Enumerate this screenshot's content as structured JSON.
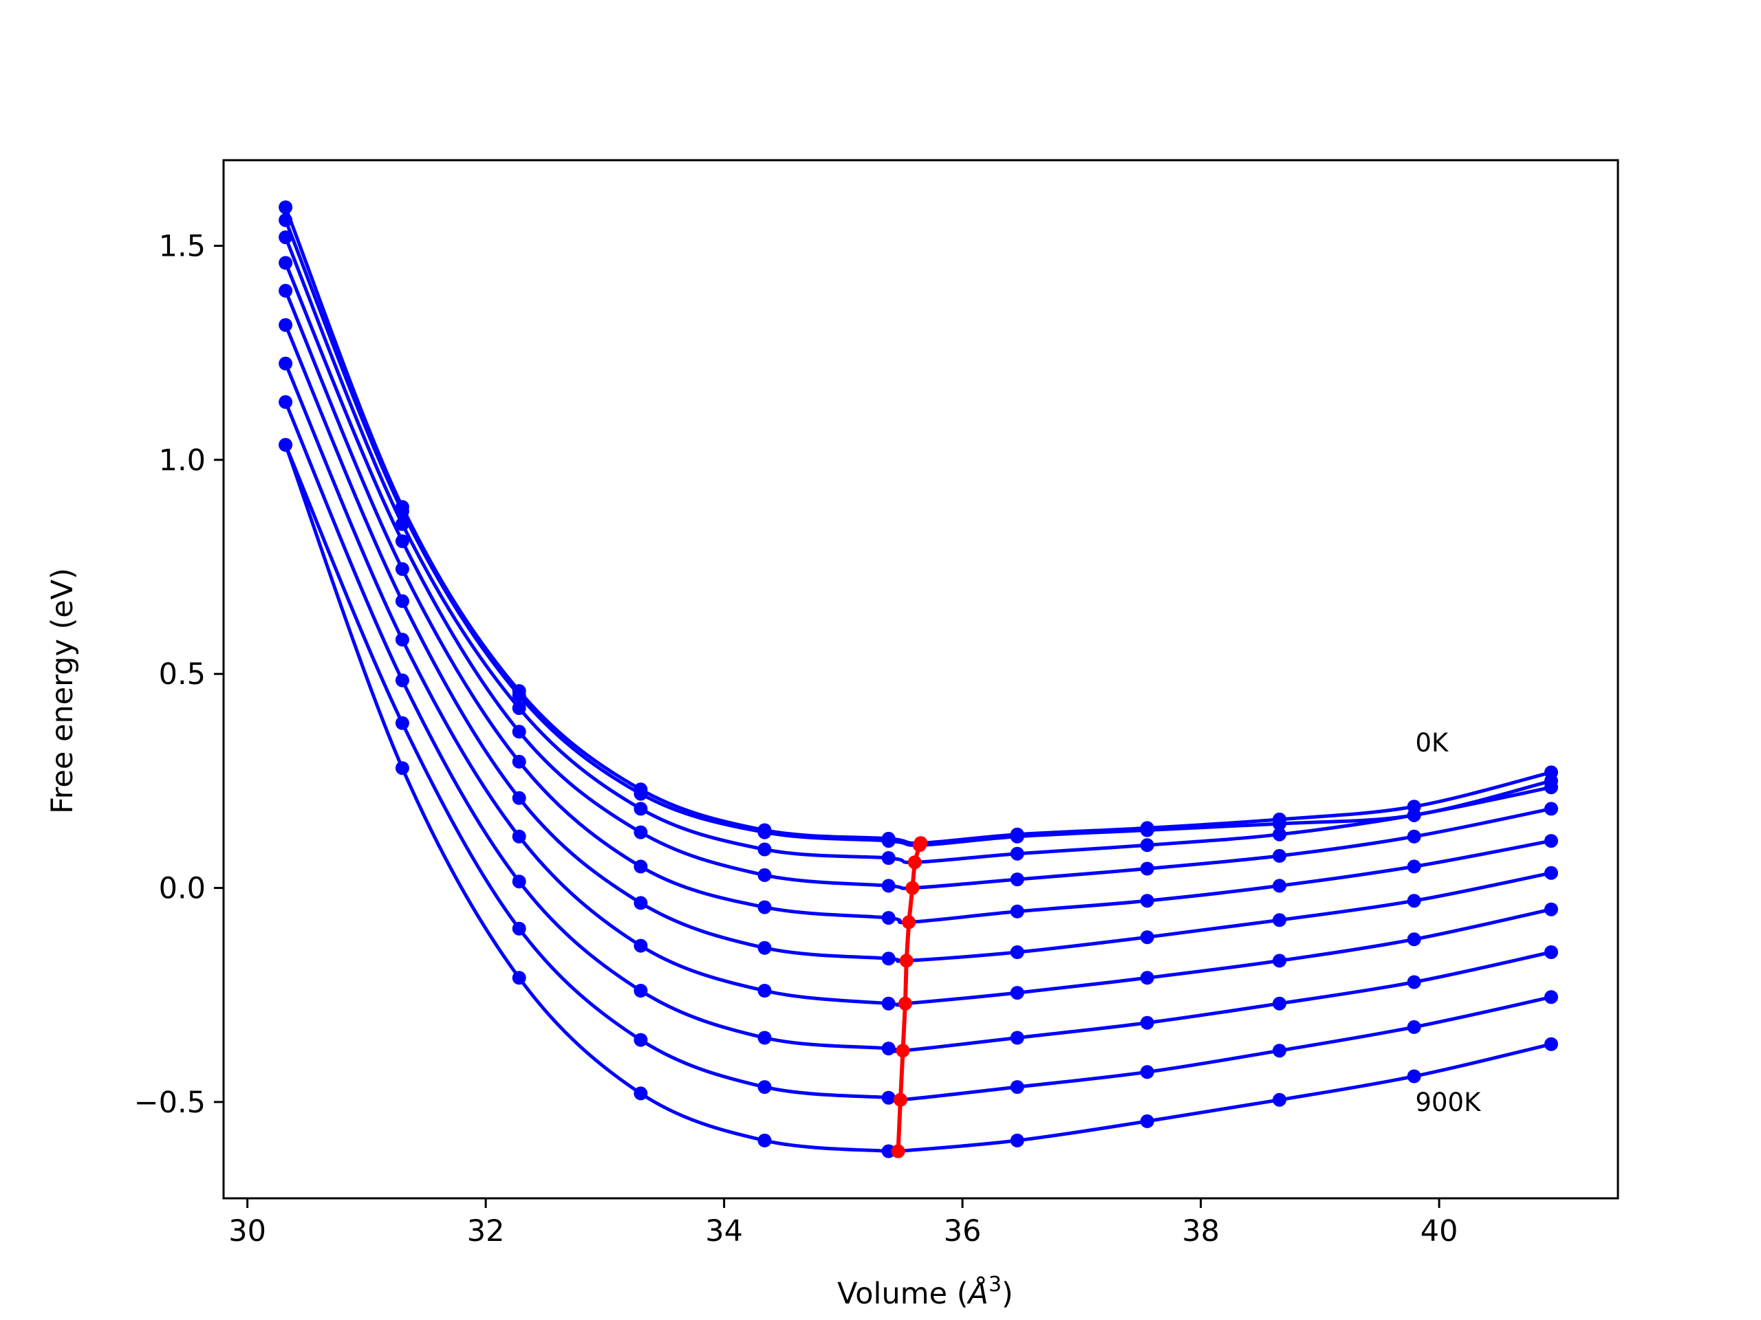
{
  "chart_data": {
    "type": "line",
    "xlabel": "Volume (",
    "xlabel_symbol": "Å",
    "xlabel_exp": "3",
    "xlabel_end": ")",
    "ylabel": "Free energy (eV)",
    "xlim": [
      29.8,
      41.5
    ],
    "ylim": [
      -0.725,
      1.7
    ],
    "xticks": [
      30,
      32,
      34,
      36,
      38,
      40
    ],
    "xtick_labels": [
      "30",
      "32",
      "34",
      "36",
      "38",
      "40"
    ],
    "yticks": [
      -0.5,
      0.0,
      0.5,
      1.0,
      1.5
    ],
    "ytick_labels": [
      "−0.5",
      "0.0",
      "0.5",
      "1.0",
      "1.5"
    ],
    "annotations": [
      {
        "text": "0K",
        "x": 39.8,
        "y": 0.34
      },
      {
        "text": "900K",
        "x": 39.8,
        "y": -0.5
      }
    ],
    "colors": {
      "series": "#0000ff",
      "minima": "#ff0000"
    },
    "volumes": [
      30.32,
      31.3,
      32.28,
      33.3,
      34.34,
      35.38,
      36.46,
      37.55,
      38.66,
      39.79,
      40.94
    ],
    "series": [
      {
        "values": [
          1.59,
          0.89,
          0.46,
          0.23,
          0.135,
          0.115,
          0.125,
          0.14,
          0.16,
          0.19,
          0.27
        ],
        "fit": {
          "fmin": 0.105,
          "vmin": 35.65,
          "rise": 0.13
        }
      },
      {
        "values": [
          1.56,
          0.88,
          0.45,
          0.22,
          0.13,
          0.11,
          0.12,
          0.135,
          0.15,
          0.17,
          0.25
        ],
        "fit": {
          "fmin": 0.1,
          "vmin": 35.65,
          "rise": 0.13
        }
      },
      {
        "values": [
          1.52,
          0.85,
          0.42,
          0.185,
          0.09,
          0.07,
          0.08,
          0.1,
          0.125,
          0.17,
          0.235
        ],
        "fit": {
          "fmin": 0.06,
          "vmin": 35.6,
          "rise": 0.17
        }
      },
      {
        "values": [
          1.46,
          0.81,
          0.365,
          0.13,
          0.03,
          0.005,
          0.02,
          0.045,
          0.075,
          0.12,
          0.185
        ],
        "fit": {
          "fmin": 0.0,
          "vmin": 35.58,
          "rise": 0.18
        }
      },
      {
        "values": [
          1.395,
          0.745,
          0.295,
          0.05,
          -0.045,
          -0.07,
          -0.055,
          -0.03,
          0.005,
          0.05,
          0.11
        ],
        "fit": {
          "fmin": -0.08,
          "vmin": 35.55,
          "rise": 0.19
        }
      },
      {
        "values": [
          1.315,
          0.67,
          0.21,
          -0.035,
          -0.14,
          -0.165,
          -0.15,
          -0.115,
          -0.075,
          -0.03,
          0.035
        ],
        "fit": {
          "fmin": -0.17,
          "vmin": 35.53,
          "rise": 0.2
        }
      },
      {
        "values": [
          1.225,
          0.58,
          0.12,
          -0.135,
          -0.24,
          -0.27,
          -0.245,
          -0.21,
          -0.17,
          -0.12,
          -0.05
        ],
        "fit": {
          "fmin": -0.27,
          "vmin": 35.52,
          "rise": 0.22
        }
      },
      {
        "values": [
          1.135,
          0.485,
          0.015,
          -0.24,
          -0.35,
          -0.375,
          -0.35,
          -0.315,
          -0.27,
          -0.22,
          -0.15
        ],
        "fit": {
          "fmin": -0.38,
          "vmin": 35.5,
          "rise": 0.23
        }
      },
      {
        "values": [
          1.035,
          0.385,
          -0.095,
          -0.355,
          -0.465,
          -0.49,
          -0.465,
          -0.43,
          -0.38,
          -0.325,
          -0.255
        ],
        "fit": {
          "fmin": -0.495,
          "vmin": 35.48,
          "rise": 0.24
        }
      },
      {
        "values": [
          1.035,
          0.28,
          -0.21,
          -0.48,
          -0.59,
          -0.615,
          -0.59,
          -0.545,
          -0.495,
          -0.44,
          -0.365
        ],
        "fit": {
          "fmin": -0.615,
          "vmin": 35.46,
          "rise": 0.25
        }
      }
    ],
    "minima": {
      "x": [
        35.65,
        35.64,
        35.6,
        35.58,
        35.55,
        35.53,
        35.52,
        35.5,
        35.48,
        35.46
      ],
      "y": [
        0.105,
        0.1,
        0.06,
        0.0,
        -0.08,
        -0.17,
        -0.27,
        -0.38,
        -0.495,
        -0.615
      ]
    }
  }
}
